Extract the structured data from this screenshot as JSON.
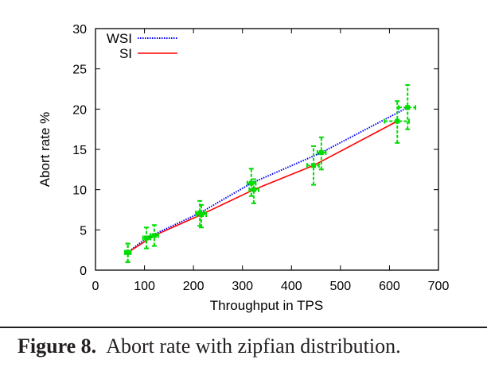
{
  "chart_data": {
    "type": "line",
    "title": "",
    "xlabel": "Throughput in TPS",
    "ylabel": "Abort rate %",
    "xlim": [
      0,
      700
    ],
    "ylim": [
      0,
      30
    ],
    "xticks": [
      0,
      100,
      200,
      300,
      400,
      500,
      600,
      700
    ],
    "yticks": [
      0,
      5,
      10,
      15,
      20,
      25,
      30
    ],
    "grid": false,
    "legend_position": "top-left",
    "series": [
      {
        "name": "WSI",
        "color": "#0000ff",
        "style": "dotted",
        "points": [
          {
            "x": 66,
            "y": 2.2,
            "x_err": [
              60,
              72
            ],
            "y_err": [
              1.0,
              3.3
            ]
          },
          {
            "x": 104,
            "y": 4.0,
            "x_err": [
              97,
              112
            ],
            "y_err": [
              2.7,
              5.3
            ]
          },
          {
            "x": 213,
            "y": 7.1,
            "x_err": [
              205,
              222
            ],
            "y_err": [
              5.5,
              8.6
            ]
          },
          {
            "x": 318,
            "y": 10.8,
            "x_err": [
              310,
              327
            ],
            "y_err": [
              9.2,
              12.6
            ]
          },
          {
            "x": 461,
            "y": 14.6,
            "x_err": [
              453,
              470
            ],
            "y_err": [
              12.5,
              16.5
            ]
          },
          {
            "x": 637,
            "y": 20.2,
            "x_err": [
              619,
              653
            ],
            "y_err": [
              17.5,
              23.0
            ]
          }
        ]
      },
      {
        "name": "SI",
        "color": "#ff0000",
        "style": "solid",
        "points": [
          {
            "x": 66,
            "y": 2.2,
            "x_err": [
              60,
              72
            ],
            "y_err": [
              1.0,
              3.3
            ]
          },
          {
            "x": 120,
            "y": 4.3,
            "x_err": [
              112,
              128
            ],
            "y_err": [
              3.0,
              5.6
            ]
          },
          {
            "x": 216,
            "y": 6.9,
            "x_err": [
              207,
              226
            ],
            "y_err": [
              5.3,
              8.1
            ]
          },
          {
            "x": 323,
            "y": 10.0,
            "x_err": [
              314,
              333
            ],
            "y_err": [
              8.3,
              11.3
            ]
          },
          {
            "x": 445,
            "y": 13.0,
            "x_err": [
              432,
              456
            ],
            "y_err": [
              10.6,
              15.4
            ]
          },
          {
            "x": 616,
            "y": 18.5,
            "x_err": [
              590,
              640
            ],
            "y_err": [
              15.8,
              21.0
            ]
          }
        ]
      }
    ],
    "errorbar_color": "#00dd00"
  },
  "caption": {
    "label": "Figure 8.",
    "text": "Abort rate with zipfian distribution."
  }
}
